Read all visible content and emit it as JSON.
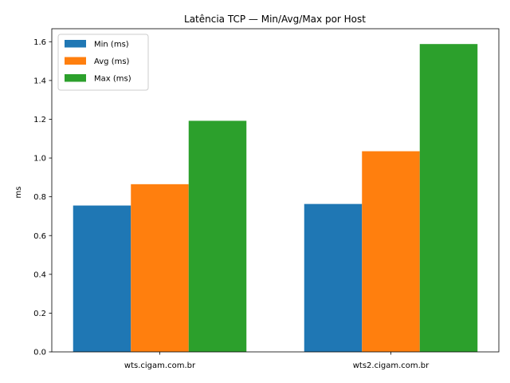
{
  "chart_data": {
    "type": "bar",
    "title": "Latência TCP — Min/Avg/Max por Host",
    "xlabel": "",
    "ylabel": "ms",
    "categories": [
      "wts.cigam.com.br",
      "wts2.cigam.com.br"
    ],
    "series": [
      {
        "name": "Min (ms)",
        "values": [
          0.755,
          0.763
        ],
        "color": "#1f77b4"
      },
      {
        "name": "Avg (ms)",
        "values": [
          0.865,
          1.035
        ],
        "color": "#ff7f0e"
      },
      {
        "name": "Max (ms)",
        "values": [
          1.192,
          1.588
        ],
        "color": "#2ca02c"
      }
    ],
    "ylim": [
      0,
      1.667
    ],
    "yticks": [
      "0.0",
      "0.2",
      "0.4",
      "0.6",
      "0.8",
      "1.0",
      "1.2",
      "1.4",
      "1.6"
    ],
    "grid": false,
    "legend_position": "top-left"
  }
}
